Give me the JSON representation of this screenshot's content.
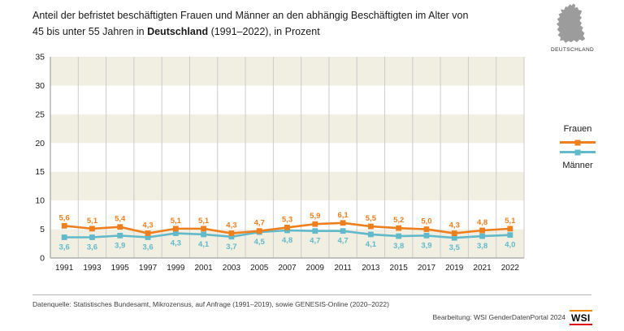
{
  "header": {
    "title_line1": "Anteil der befristet beschäftigten Frauen und Männer an den abhängig Beschäftigten im Alter von",
    "title_line2_pre": "45 bis unter 55 Jahren in ",
    "title_line2_bold": "Deutschland",
    "title_line2_post": " (1991–2022), in Prozent",
    "region_label": "DEUTSCHLAND"
  },
  "legend": {
    "frauen": "Frauen",
    "maenner": "Männer"
  },
  "chart_data": {
    "type": "line",
    "title": "Anteil der befristet beschäftigten Frauen und Männer an den abhängig Beschäftigten im Alter von 45 bis unter 55 Jahren in Deutschland (1991–2022), in Prozent",
    "categories": [
      "1991",
      "1993",
      "1995",
      "1997",
      "1999",
      "2001",
      "2003",
      "2005",
      "2007",
      "2009",
      "2011",
      "2013",
      "2015",
      "2017",
      "2019",
      "2021",
      "2022"
    ],
    "series": [
      {
        "name": "Frauen",
        "color": "#EE7F1E",
        "values": [
          5.6,
          5.1,
          5.4,
          4.3,
          5.1,
          5.1,
          4.3,
          4.7,
          5.3,
          5.9,
          6.1,
          5.5,
          5.2,
          5.0,
          4.3,
          4.8,
          5.1
        ]
      },
      {
        "name": "Männer",
        "color": "#62B9C9",
        "values": [
          3.6,
          3.6,
          3.9,
          3.6,
          4.3,
          4.1,
          3.7,
          4.5,
          4.8,
          4.7,
          4.7,
          4.1,
          3.8,
          3.9,
          3.5,
          3.8,
          4.0
        ]
      }
    ],
    "xlabel": "",
    "ylabel": "",
    "ylim": [
      0,
      35
    ],
    "yticks": [
      0,
      5,
      10,
      15,
      20,
      25,
      30,
      35
    ],
    "grid": "vertical-only",
    "band_colors": [
      "#F0EFE2",
      "#FFFFFF"
    ],
    "legend_position": "right",
    "value_labels": "comma-decimal"
  },
  "footer": {
    "source": "Datenquelle: Statistisches Bundesamt, Mikrozensus, auf Anfrage (1991–2019), sowie GENESIS-Online (2020–2022)",
    "credit": "Bearbeitung: WSI GenderDatenPortal 2024",
    "logo_text": "WSI"
  },
  "colors": {
    "frauen_orange": "#EE7F1E",
    "maenner_teal": "#62B9C9",
    "band_beige": "#F0EFE2",
    "gridline": "#CBCBCB",
    "axis": "#ADADAD",
    "text_dark": "#1a1a1a",
    "footer_text": "#3d3d3d",
    "map_gray": "#9C9C9C",
    "logo_orange": "#F18700",
    "logo_red": "#E30613"
  }
}
